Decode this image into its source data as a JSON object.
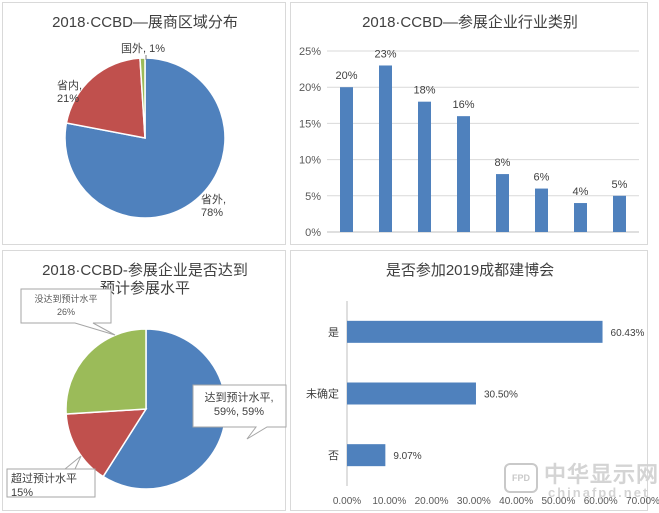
{
  "chart_data": [
    {
      "type": "pie",
      "title": "2018·CCBD—展商区域分布",
      "slices": [
        {
          "name": "省外",
          "value": 78,
          "label": "省外,\n78%",
          "color": "#4f81bd"
        },
        {
          "name": "省内",
          "value": 21,
          "label": "省内,\n21%",
          "color": "#c0504d"
        },
        {
          "name": "国外",
          "value": 1,
          "label": "国外, 1%",
          "color": "#9bbb59"
        }
      ]
    },
    {
      "type": "bar",
      "title": "2018·CCBD—参展企业行业类别",
      "categories": [
        "",
        "",
        "",
        "",
        "",
        "",
        "",
        ""
      ],
      "values": [
        20,
        23,
        18,
        16,
        8,
        6,
        4,
        5
      ],
      "data_labels": [
        "20%",
        "23%",
        "18%",
        "16%",
        "8%",
        "6%",
        "4%",
        "5%"
      ],
      "y_ticks": [
        "0%",
        "5%",
        "10%",
        "15%",
        "20%",
        "25%"
      ],
      "ylim": [
        0,
        25
      ],
      "grid": true,
      "color": "#4f81bd"
    },
    {
      "type": "pie",
      "title": "2018·CCBD-参展企业是否达到\n预计参展水平",
      "slices": [
        {
          "name": "达到预计水平",
          "value": 59,
          "label": "达到预计水平,\n59%, 59%",
          "color": "#4f81bd"
        },
        {
          "name": "超过预计水平",
          "value": 15,
          "label": "超过预计水平\n15%",
          "color": "#c0504d"
        },
        {
          "name": "没达到预计水平",
          "value": 26,
          "label": "没达到预计水平\n26%",
          "color": "#9bbb59"
        }
      ]
    },
    {
      "type": "bar",
      "orientation": "horizontal",
      "title": "是否参加2019成都建博会",
      "categories": [
        "是",
        "未确定",
        "否"
      ],
      "values": [
        60.43,
        30.5,
        9.07
      ],
      "data_labels": [
        "60.43%",
        "30.50%",
        "9.07%"
      ],
      "x_ticks": [
        "0.00%",
        "10.00%",
        "20.00%",
        "30.00%",
        "40.00%",
        "50.00%",
        "60.00%",
        "70.00%"
      ],
      "xlim": [
        0,
        70
      ],
      "grid": false,
      "color": "#4f81bd"
    }
  ],
  "watermark": {
    "badge": "FPD",
    "name": "中华显示网",
    "url": "chinafpd.net"
  }
}
